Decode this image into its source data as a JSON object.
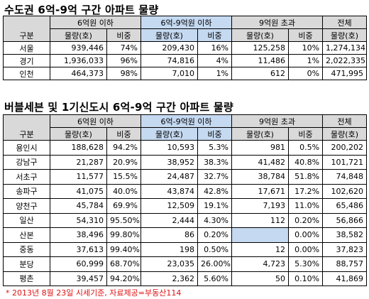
{
  "table1": {
    "title": "수도권 6억-9억 구간 아파트 물량",
    "corner_label": "구분",
    "groups": [
      "6억원 이하",
      "6억-9억원 이하",
      "9억원 초과",
      "전체"
    ],
    "subheaders": {
      "volume": "물량(호)",
      "ratio": "비중"
    },
    "rows": [
      {
        "region": "서울",
        "c1": "939,446",
        "c2": "74%",
        "c3": "209,430",
        "c4": "16%",
        "c5": "125,258",
        "c6": "10%",
        "c7": "1,274,134"
      },
      {
        "region": "경기",
        "c1": "1,936,033",
        "c2": "96%",
        "c3": "74,816",
        "c4": "4%",
        "c5": "11,486",
        "c6": "1%",
        "c7": "2,022,335"
      },
      {
        "region": "인천",
        "c1": "464,373",
        "c2": "98%",
        "c3": "7,010",
        "c4": "1%",
        "c5": "612",
        "c6": "0%",
        "c7": "471,995"
      }
    ]
  },
  "table2": {
    "title": "버블세븐 및 1기신도시 6억-9억 구간 아파트 물량",
    "corner_label": "구분",
    "groups": [
      "6억원 이하",
      "6억-9억원 이하",
      "9억원 초과",
      "전체"
    ],
    "subheaders": {
      "volume": "물량(호)",
      "ratio": "비중"
    },
    "rows": [
      {
        "region": "용인시",
        "c1": "188,628",
        "c2": "94.2%",
        "c3": "10,593",
        "c4": "5.3%",
        "c5": "981",
        "c6": "0.5%",
        "c7": "200,202"
      },
      {
        "region": "강남구",
        "c1": "21,287",
        "c2": "20.9%",
        "c3": "38,952",
        "c4": "38.3%",
        "c5": "41,482",
        "c6": "40.8%",
        "c7": "101,721"
      },
      {
        "region": "서초구",
        "c1": "11,577",
        "c2": "15.5%",
        "c3": "24,487",
        "c4": "32.7%",
        "c5": "38,784",
        "c6": "51.8%",
        "c7": "74,848"
      },
      {
        "region": "송파구",
        "c1": "41,075",
        "c2": "40.0%",
        "c3": "43,874",
        "c4": "42.8%",
        "c5": "17,671",
        "c6": "17.2%",
        "c7": "102,620"
      },
      {
        "region": "양천구",
        "c1": "45,784",
        "c2": "69.9%",
        "c3": "12,509",
        "c4": "19.1%",
        "c5": "7,193",
        "c6": "11.0%",
        "c7": "65,486"
      },
      {
        "region": "일산",
        "c1": "54,310",
        "c2": "95.50%",
        "c3": "2,444",
        "c4": "4.30%",
        "c5": "112",
        "c6": "0.20%",
        "c7": "56,866"
      },
      {
        "region": "산본",
        "c1": "38,496",
        "c2": "99.80%",
        "c3": "86",
        "c4": "0.20%",
        "c5": "",
        "c6": "0.00%",
        "c7": "38,582"
      },
      {
        "region": "중동",
        "c1": "37,613",
        "c2": "99.40%",
        "c3": "198",
        "c4": "0.50%",
        "c5": "12",
        "c6": "0.00%",
        "c7": "37,823"
      },
      {
        "region": "분당",
        "c1": "60,999",
        "c2": "68.70%",
        "c3": "23,035",
        "c4": "26.00%",
        "c5": "4,723",
        "c6": "5.30%",
        "c7": "88,757"
      },
      {
        "region": "평촌",
        "c1": "39,457",
        "c2": "94.20%",
        "c3": "2,362",
        "c4": "5.60%",
        "c5": "50",
        "c6": "0.10%",
        "c7": "41,869"
      }
    ]
  },
  "footnote": "* 2013년 8월 23일 시세기준, 자료제공=부동산114",
  "colors": {
    "header_gray": "#d9d9d9",
    "header_blue": "#c5d9f1",
    "shaded_cell": "#c5d9f1",
    "footnote_red": "#e01010"
  }
}
